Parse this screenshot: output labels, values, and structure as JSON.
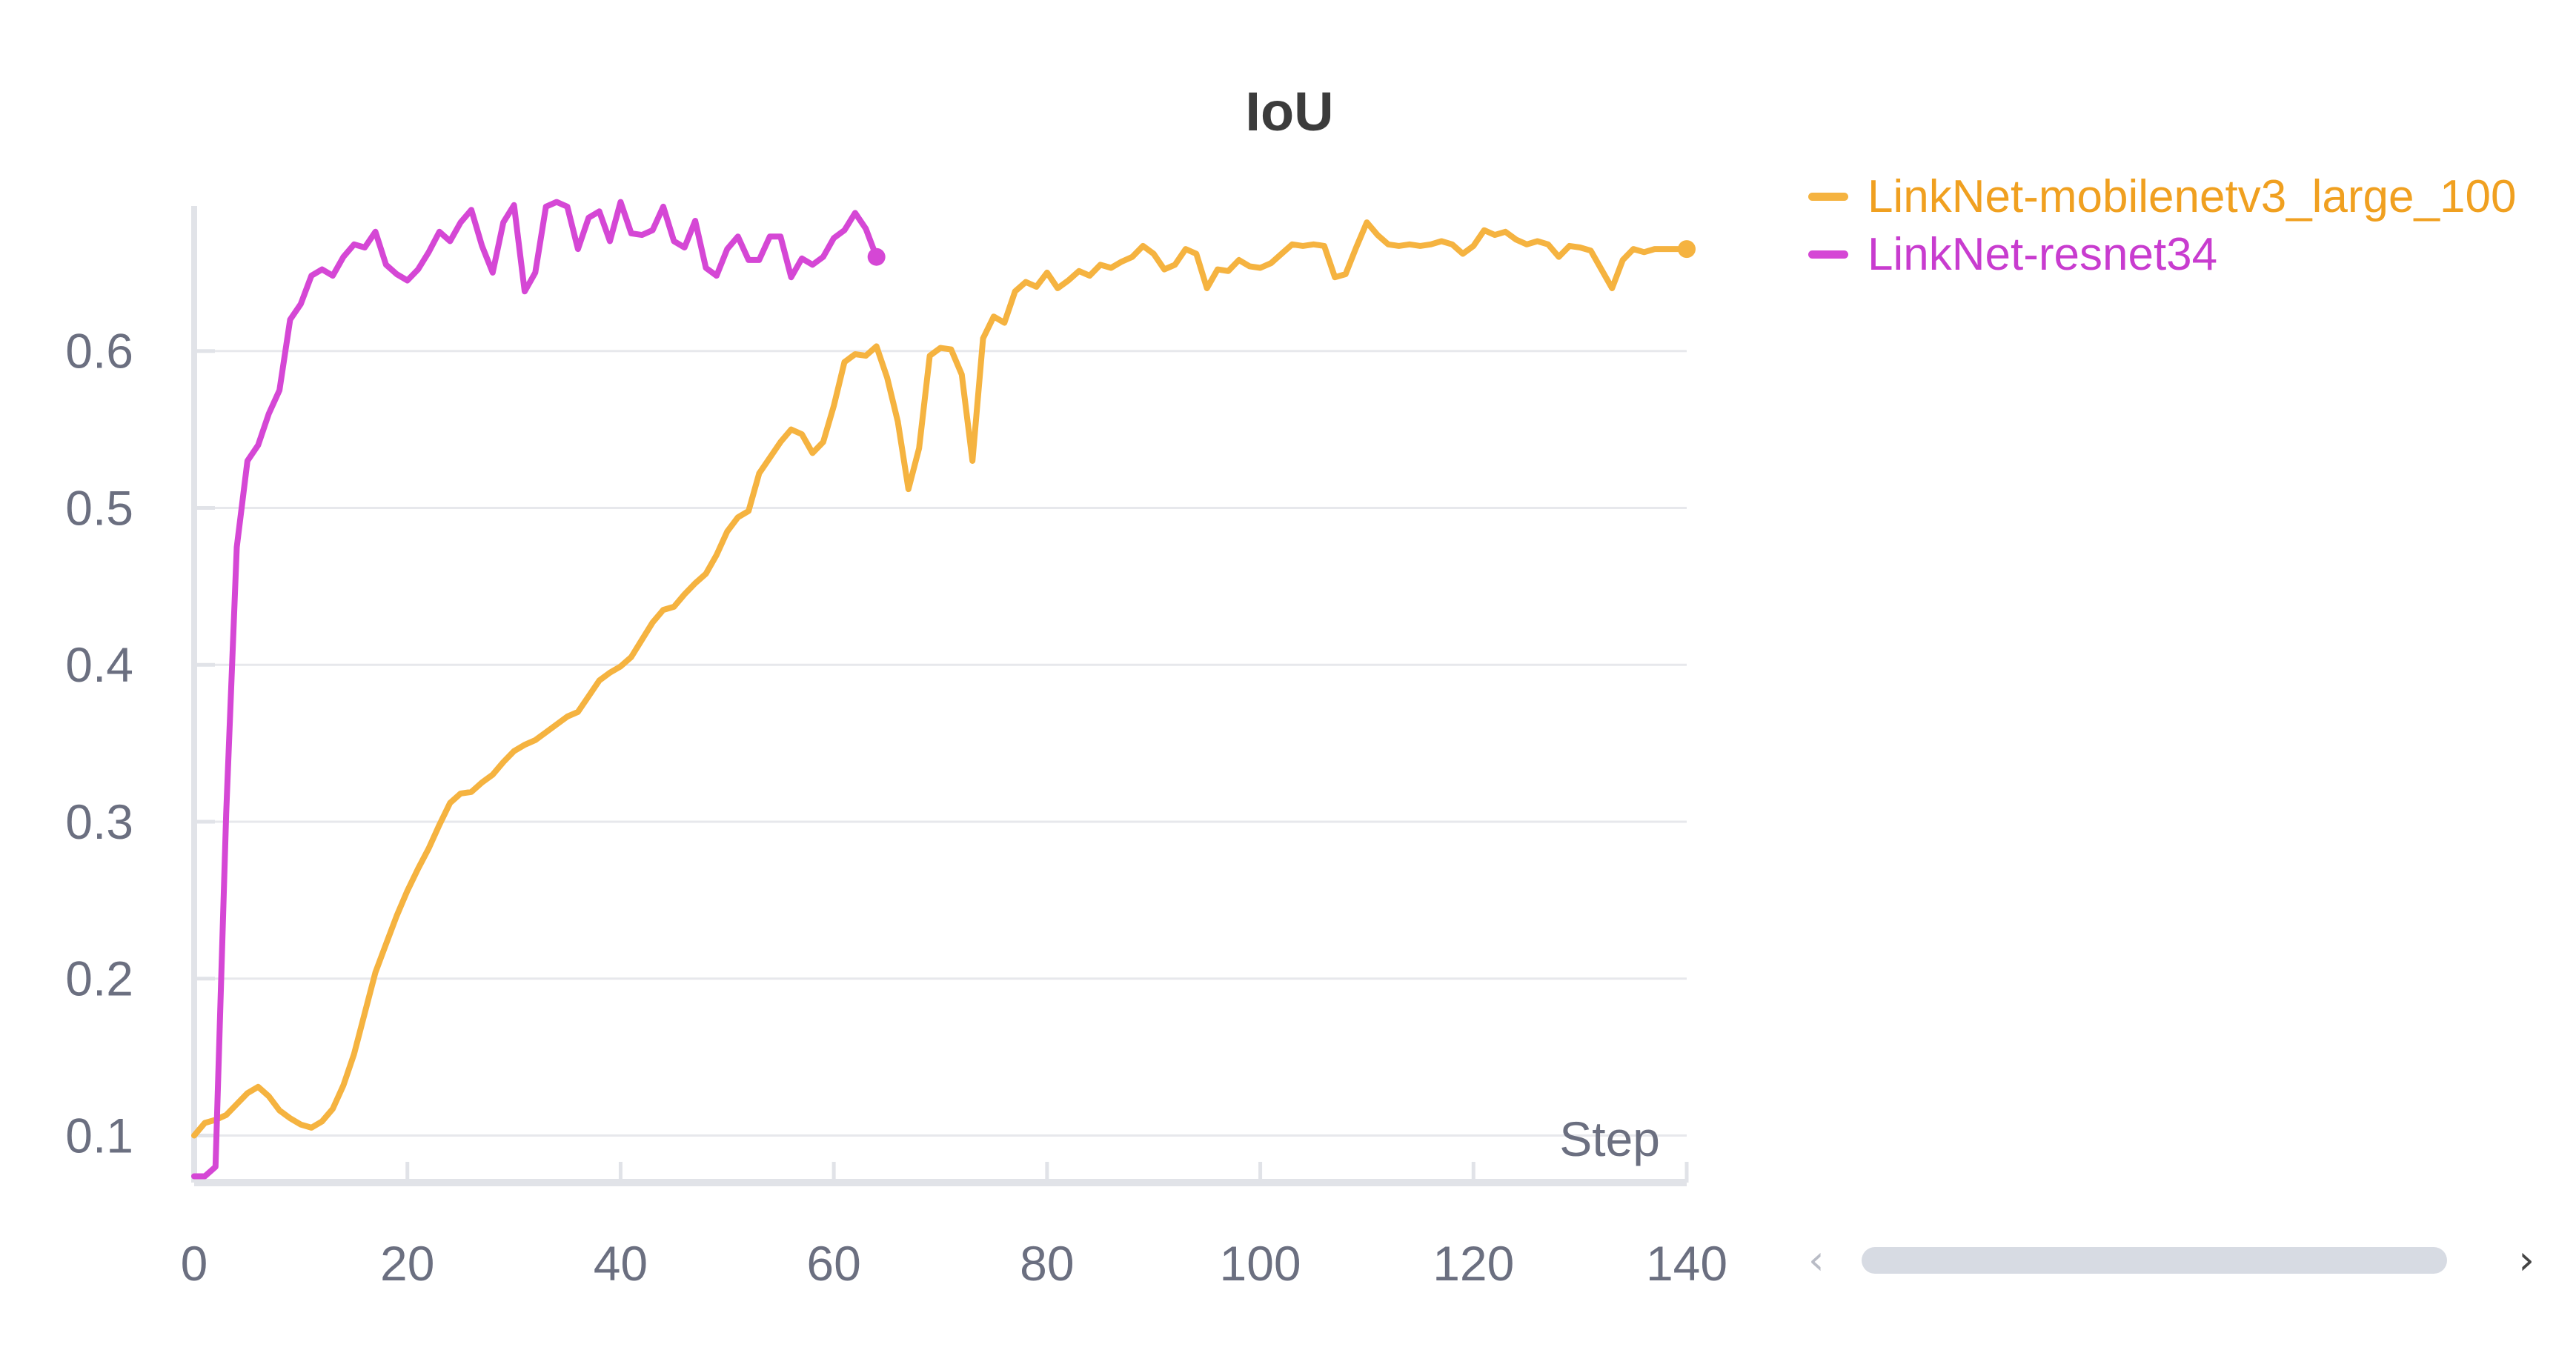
{
  "chart_data": {
    "type": "line",
    "title": "IoU",
    "xlabel": "Step",
    "ylabel": "",
    "xlim": [
      0,
      140
    ],
    "ylim": [
      0.07,
      0.7
    ],
    "x_ticks": [
      0,
      20,
      40,
      60,
      80,
      100,
      120,
      140
    ],
    "y_ticks": [
      0.1,
      0.2,
      0.3,
      0.4,
      0.5,
      0.6
    ],
    "grid": "horizontal",
    "legend_position": "right",
    "series": [
      {
        "name": "LinkNet-mobilenetv3_large_100",
        "color": "#f5b340",
        "end_marker": true,
        "x": [
          0,
          1,
          2,
          3,
          4,
          5,
          6,
          7,
          8,
          9,
          10,
          11,
          12,
          13,
          14,
          15,
          16,
          17,
          18,
          19,
          20,
          21,
          22,
          23,
          24,
          25,
          26,
          27,
          28,
          29,
          30,
          31,
          32,
          33,
          34,
          35,
          36,
          37,
          38,
          39,
          40,
          41,
          42,
          43,
          44,
          45,
          46,
          47,
          48,
          49,
          50,
          51,
          52,
          53,
          54,
          55,
          56,
          57,
          58,
          59,
          60,
          61,
          62,
          63,
          64,
          65,
          66,
          67,
          68,
          69,
          70,
          71,
          72,
          73,
          74,
          75,
          76,
          77,
          78,
          79,
          80,
          81,
          82,
          83,
          84,
          85,
          86,
          87,
          88,
          89,
          90,
          91,
          92,
          93,
          94,
          95,
          96,
          97,
          98,
          99,
          100,
          101,
          102,
          103,
          104,
          105,
          106,
          107,
          108,
          109,
          110,
          111,
          112,
          113,
          114,
          115,
          116,
          117,
          118,
          119,
          120,
          121,
          122,
          123,
          124,
          125,
          126,
          127,
          128,
          129,
          130,
          131,
          132,
          133,
          134,
          135,
          136,
          137,
          138,
          139,
          140
        ],
        "y": [
          0.1,
          0.108,
          0.11,
          0.113,
          0.12,
          0.127,
          0.131,
          0.125,
          0.116,
          0.111,
          0.107,
          0.105,
          0.109,
          0.117,
          0.132,
          0.152,
          0.178,
          0.204,
          0.222,
          0.24,
          0.256,
          0.27,
          0.283,
          0.298,
          0.312,
          0.318,
          0.319,
          0.325,
          0.33,
          0.338,
          0.345,
          0.349,
          0.352,
          0.357,
          0.362,
          0.367,
          0.37,
          0.38,
          0.39,
          0.395,
          0.399,
          0.405,
          0.416,
          0.427,
          0.435,
          0.437,
          0.445,
          0.452,
          0.458,
          0.47,
          0.485,
          0.494,
          0.498,
          0.522,
          0.532,
          0.542,
          0.55,
          0.547,
          0.535,
          0.542,
          0.565,
          0.593,
          0.598,
          0.597,
          0.603,
          0.583,
          0.555,
          0.512,
          0.538,
          0.597,
          0.602,
          0.601,
          0.585,
          0.53,
          0.608,
          0.622,
          0.618,
          0.638,
          0.644,
          0.641,
          0.65,
          0.64,
          0.645,
          0.651,
          0.648,
          0.655,
          0.653,
          0.657,
          0.66,
          0.667,
          0.662,
          0.652,
          0.655,
          0.665,
          0.662,
          0.64,
          0.652,
          0.651,
          0.658,
          0.654,
          0.653,
          0.656,
          0.662,
          0.668,
          0.667,
          0.668,
          0.667,
          0.647,
          0.649,
          0.666,
          0.682,
          0.674,
          0.668,
          0.667,
          0.668,
          0.667,
          0.668,
          0.67,
          0.668,
          0.662,
          0.667,
          0.677,
          0.674,
          0.676,
          0.671,
          0.668,
          0.67,
          0.668,
          0.66,
          0.667,
          0.666,
          0.664,
          0.652,
          0.64,
          0.658,
          0.665,
          0.663,
          0.665,
          0.665,
          0.665,
          0.665
        ]
      },
      {
        "name": "LinkNet-resnet34",
        "color": "#d547d5",
        "end_marker": true,
        "x": [
          0,
          1,
          2,
          3,
          4,
          5,
          6,
          7,
          8,
          9,
          10,
          11,
          12,
          13,
          14,
          15,
          16,
          17,
          18,
          19,
          20,
          21,
          22,
          23,
          24,
          25,
          26,
          27,
          28,
          29,
          30,
          31,
          32,
          33,
          34,
          35,
          36,
          37,
          38,
          39,
          40,
          41,
          42,
          43,
          44,
          45,
          46,
          47,
          48,
          49,
          50,
          51,
          52,
          53,
          54,
          55,
          56,
          57,
          58,
          59,
          60,
          61,
          62,
          63,
          64
        ],
        "y": [
          0.074,
          0.074,
          0.08,
          0.305,
          0.475,
          0.53,
          0.54,
          0.56,
          0.575,
          0.62,
          0.63,
          0.648,
          0.652,
          0.648,
          0.66,
          0.668,
          0.666,
          0.676,
          0.655,
          0.649,
          0.645,
          0.652,
          0.663,
          0.676,
          0.67,
          0.682,
          0.69,
          0.667,
          0.65,
          0.682,
          0.693,
          0.638,
          0.65,
          0.692,
          0.695,
          0.692,
          0.665,
          0.685,
          0.689,
          0.67,
          0.695,
          0.675,
          0.674,
          0.677,
          0.692,
          0.67,
          0.666,
          0.683,
          0.653,
          0.648,
          0.665,
          0.673,
          0.658,
          0.658,
          0.673,
          0.673,
          0.647,
          0.659,
          0.655,
          0.66,
          0.672,
          0.677,
          0.688,
          0.678,
          0.66
        ]
      }
    ]
  },
  "legend": {
    "items": [
      {
        "label": "LinkNet-mobilenetv3_large_100",
        "color": "#f5b340"
      },
      {
        "label": "LinkNet-resnet34",
        "color": "#d547d5"
      }
    ]
  },
  "scrollbar": {
    "left_icon": "chevron-left-icon",
    "right_icon": "chevron-right-icon",
    "left_glyph": "‹",
    "right_glyph": "›"
  }
}
